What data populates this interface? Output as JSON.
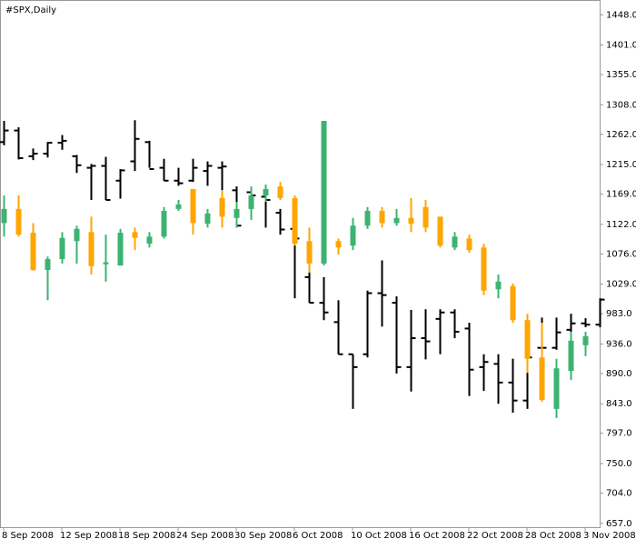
{
  "chart_data": {
    "type": "ohlc",
    "title": "#SPX,Daily",
    "categories": [
      "8 Sep 2008",
      null,
      null,
      null,
      "12 Sep 2008",
      null,
      null,
      null,
      "18 Sep 2008",
      null,
      null,
      null,
      "24 Sep 2008",
      null,
      null,
      null,
      "30 Sep 2008",
      null,
      null,
      null,
      "6 Oct 2008",
      null,
      null,
      null,
      "10 Oct 2008",
      null,
      null,
      null,
      "16 Oct 2008",
      null,
      null,
      null,
      "22 Oct 2008",
      null,
      null,
      null,
      "28 Oct 2008",
      null,
      null,
      null,
      "3 Nov 2008",
      null
    ],
    "ylim": [
      651,
      1471
    ],
    "yticks": [
      {
        "value": 657,
        "label": "657.0"
      },
      {
        "value": 704,
        "label": "704.0"
      },
      {
        "value": 750,
        "label": "750.0"
      },
      {
        "value": 797,
        "label": "797.0"
      },
      {
        "value": 843,
        "label": "843.0"
      },
      {
        "value": 890,
        "label": "890.0"
      },
      {
        "value": 936,
        "label": "936.0"
      },
      {
        "value": 983,
        "label": "983.0"
      },
      {
        "value": 1029,
        "label": "1029.0"
      },
      {
        "value": 1076,
        "label": "1076.0"
      },
      {
        "value": 1122,
        "label": "1122.0"
      },
      {
        "value": 1169,
        "label": "1169.0"
      },
      {
        "value": 1215,
        "label": "1215.0"
      },
      {
        "value": 1262,
        "label": "1262.0"
      },
      {
        "value": 1308,
        "label": "1308.0"
      },
      {
        "value": 1355,
        "label": "1355.0"
      },
      {
        "value": 1401,
        "label": "1401.0"
      },
      {
        "value": 1448,
        "label": "1448.0"
      }
    ],
    "grid": false,
    "series": [
      {
        "style": "bar",
        "color": "#000000",
        "open": [
          1250,
          1268,
          1228,
          1232,
          1249,
          1228,
          1210,
          1213,
          1190,
          1220,
          1250,
          1210,
          1190,
          1190,
          1205,
          1210,
          1175,
          1172,
          1165,
          1140,
          1115,
          1040,
          1000,
          970,
          920,
          920,
          1015,
          1000,
          900,
          945,
          975,
          985,
          960,
          900,
          905,
          876,
          848,
          930,
          930,
          958,
          968,
          966
        ],
        "high": [
          1283,
          1273,
          1240,
          1250,
          1261,
          1230,
          1216,
          1227,
          1208,
          1284,
          1252,
          1224,
          1210,
          1224,
          1220,
          1220,
          1181,
          1174,
          1181,
          1146,
          1124,
          1061,
          1040,
          1004,
          920,
          1019,
          1066,
          1010,
          989,
          990,
          990,
          990,
          969,
          920,
          920,
          913,
          920,
          977,
          977,
          983,
          976,
          1007
        ],
        "low": [
          1245,
          1223,
          1222,
          1226,
          1238,
          1202,
          1160,
          1160,
          1162,
          1205,
          1210,
          1190,
          1182,
          1188,
          1182,
          1175,
          1117,
          1131,
          1117,
          1106,
          1007,
          1000,
          973,
          920,
          835,
          915,
          963,
          890,
          862,
          912,
          920,
          945,
          855,
          863,
          843,
          829,
          835,
          927,
          927,
          948,
          962,
          962
        ],
        "close": [
          1268,
          1225,
          1232,
          1249,
          1252,
          1214,
          1213,
          1160,
          1206,
          1255,
          1208,
          1190,
          1186,
          1210,
          1213,
          1212,
          1120,
          1167,
          1160,
          1114,
          1100,
          1000,
          985,
          920,
          900,
          1015,
          1012,
          900,
          945,
          940,
          985,
          955,
          896,
          908,
          876,
          848,
          915,
          930,
          954,
          968,
          966,
          1005
        ]
      },
      {
        "style": "candle",
        "up_color": "#3cb371",
        "down_color": "#ffa500",
        "open": [
          1124,
          1146,
          1109,
          1051,
          1068,
          1096,
          1110,
          1060,
          1058,
          1110,
          1092,
          1103,
          1146,
          1177,
          1123,
          1163,
          1132,
          1146,
          1167,
          1181,
          1163,
          1096,
          1061,
          1096,
          1089,
          1120,
          1143,
          1124,
          1132,
          1149,
          1134,
          1086,
          1100,
          1086,
          1021,
          1026,
          973,
          915,
          835,
          894,
          934,
          null
        ],
        "high": [
          1167,
          1167,
          1124,
          1072,
          1110,
          1120,
          1134,
          1106,
          1115,
          1117,
          1110,
          1149,
          1160,
          1177,
          1146,
          1174,
          1157,
          1181,
          1184,
          1188,
          1167,
          1117,
          1283,
          1100,
          1132,
          1149,
          1149,
          1146,
          1163,
          1160,
          1134,
          1110,
          1106,
          1092,
          1044,
          1030,
          983,
          969,
          913,
          955,
          955,
          null
        ],
        "low": [
          1103,
          1103,
          1050,
          1004,
          1061,
          1061,
          1044,
          1033,
          1058,
          1082,
          1086,
          1100,
          1143,
          1106,
          1117,
          1117,
          1117,
          1129,
          1157,
          1160,
          1089,
          1047,
          1058,
          1075,
          1082,
          1115,
          1117,
          1120,
          1110,
          1110,
          1086,
          1082,
          1078,
          1012,
          1007,
          969,
          891,
          846,
          821,
          880,
          917,
          null
        ],
        "close": [
          1146,
          1106,
          1051,
          1068,
          1101,
          1115,
          1057,
          1063,
          1109,
          1101,
          1103,
          1143,
          1153,
          1124,
          1139,
          1134,
          1146,
          1167,
          1177,
          1163,
          1092,
          1061,
          1283,
          1086,
          1120,
          1143,
          1124,
          1132,
          1123,
          1117,
          1089,
          1103,
          1082,
          1019,
          1033,
          973,
          913,
          849,
          898,
          941,
          948,
          null
        ]
      }
    ]
  }
}
